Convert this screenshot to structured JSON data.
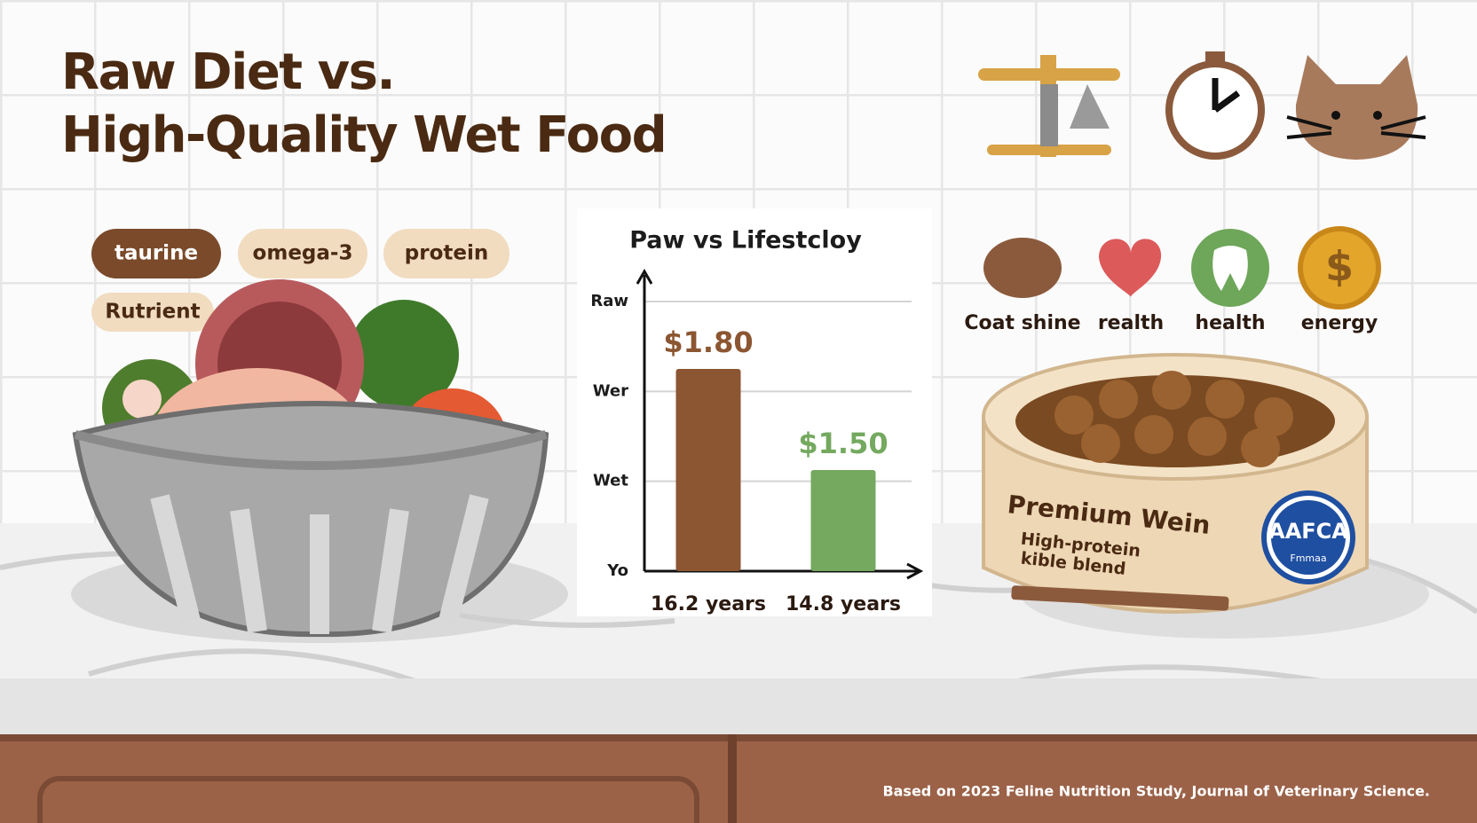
{
  "header": {
    "title_lines": [
      "Raw Diet vs.",
      "High-Quality Wet Food"
    ]
  },
  "tags": [
    "taurine",
    "omega-3",
    "protein",
    "Rutrient"
  ],
  "benefits": [
    "Coat shine",
    "realth",
    "health",
    "energy"
  ],
  "product": {
    "name": "Premium Wein",
    "bullets": [
      "High-protein",
      "kible blend"
    ],
    "badge": "AAFCA",
    "badge_sub": "Fmmaa"
  },
  "footnote": "Based on 2023 Feline Nutrition Study, Journal of Veterinary Science.",
  "chart_data": {
    "type": "bar",
    "title": "Paw vs Lifestcloy",
    "categories": [
      "16.2 years",
      "14.8 years"
    ],
    "values": [
      1.8,
      1.5
    ],
    "value_labels": [
      "$1.80",
      "$1.50"
    ],
    "colors": [
      "#8b5631",
      "#74a95f"
    ],
    "y_labels": [
      "Raw",
      "Wer",
      "Wet",
      "Yo"
    ],
    "ylim": [
      1.2,
      2.0
    ]
  }
}
